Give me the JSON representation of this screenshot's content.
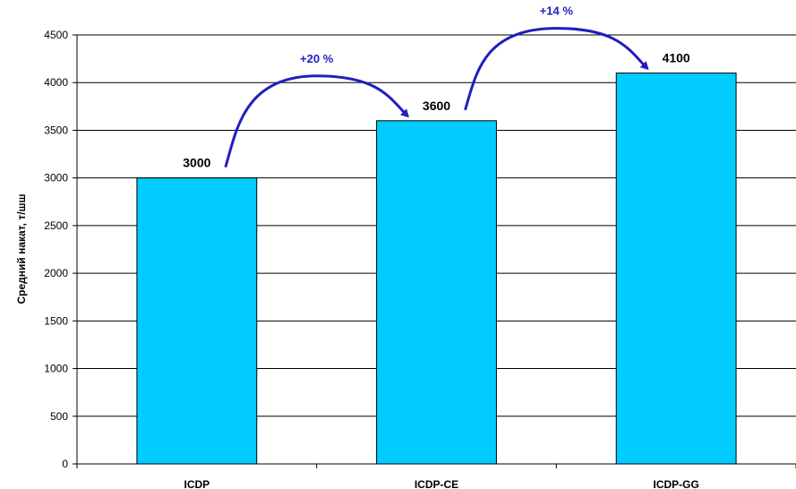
{
  "chart_data": {
    "type": "bar",
    "categories": [
      "ICDP",
      "ICDP-CE",
      "ICDP-GG"
    ],
    "values": [
      3000,
      3600,
      4100
    ],
    "data_labels": [
      "3000",
      "3600",
      "4100"
    ],
    "ylabel": "Средний накат, т/шш",
    "ylim": [
      0,
      4500
    ],
    "yticks": [
      0,
      500,
      1000,
      1500,
      2000,
      2500,
      3000,
      3500,
      4000,
      4500
    ],
    "grid": true,
    "legend": "none",
    "bar_color": "#00ccff",
    "arrow_color": "#1f1fbf",
    "annotations": [
      {
        "text": "+20 %",
        "from": 0,
        "to": 1
      },
      {
        "text": "+14 %",
        "from": 1,
        "to": 2
      }
    ]
  }
}
